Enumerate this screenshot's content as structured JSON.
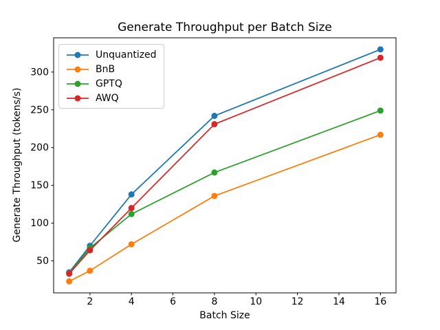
{
  "chart_data": {
    "type": "line",
    "title": "Generate Throughput per Batch Size",
    "xlabel": "Batch Size",
    "ylabel": "Generate Throughput (tokens/s)",
    "x": [
      1,
      2,
      4,
      8,
      16
    ],
    "series": [
      {
        "name": "Unquantized",
        "color": "#1f77b4",
        "values": [
          35,
          70,
          138,
          242,
          330
        ]
      },
      {
        "name": "BnB",
        "color": "#ff7f0e",
        "values": [
          23,
          37,
          72,
          136,
          217
        ]
      },
      {
        "name": "GPTQ",
        "color": "#2ca02c",
        "values": [
          34,
          67,
          112,
          167,
          249
        ]
      },
      {
        "name": "AWQ",
        "color": "#d62728",
        "values": [
          33,
          64,
          120,
          231,
          319
        ]
      }
    ],
    "xlim": [
      0.25,
      16.75
    ],
    "ylim": [
      7.65,
      345.35
    ],
    "xticks": [
      2,
      4,
      6,
      8,
      10,
      12,
      14,
      16
    ],
    "yticks": [
      50,
      100,
      150,
      200,
      250,
      300
    ],
    "grid": false,
    "legend_position": "upper-left",
    "marker": "o",
    "axis_color": "#000000",
    "background": "#ffffff"
  }
}
